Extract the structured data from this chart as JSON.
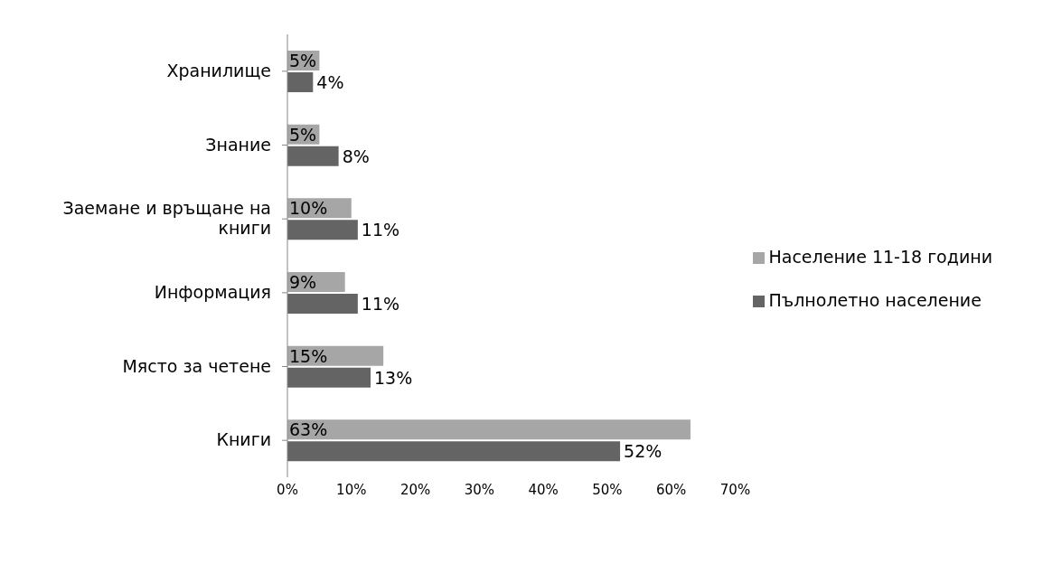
{
  "chart_data": {
    "type": "bar",
    "orientation": "horizontal",
    "categories": [
      "Хранилище",
      "Знание",
      "Заемане и връщане на книги",
      "Информация",
      "Място за четене",
      "Книги"
    ],
    "series": [
      {
        "name": "Население 11-18 години",
        "color": "#a6a6a6",
        "values": [
          5,
          5,
          10,
          9,
          15,
          63
        ],
        "value_labels": [
          "5%",
          "5%",
          "10%",
          "9%",
          "15%",
          "63%"
        ]
      },
      {
        "name": "Пълнолетно население",
        "color": "#646464",
        "values": [
          4,
          8,
          11,
          11,
          13,
          52
        ],
        "value_labels": [
          "4%",
          "8%",
          "11%",
          "11%",
          "13%",
          "52%"
        ]
      }
    ],
    "xlim": [
      0,
      70
    ],
    "xticks": [
      {
        "value": 0,
        "label": "0%"
      },
      {
        "value": 10,
        "label": "10%"
      },
      {
        "value": 20,
        "label": "20%"
      },
      {
        "value": 30,
        "label": "30%"
      },
      {
        "value": 40,
        "label": "40%"
      },
      {
        "value": 50,
        "label": "50%"
      },
      {
        "value": 60,
        "label": "60%"
      },
      {
        "value": 70,
        "label": "70%"
      }
    ],
    "grid": false,
    "legend": "right"
  }
}
